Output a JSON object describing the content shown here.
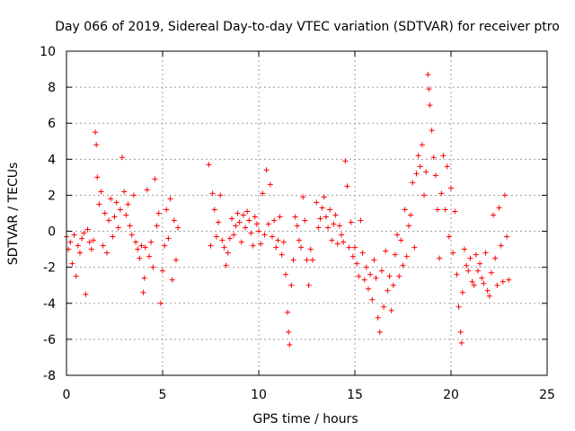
{
  "chart_data": {
    "type": "scatter",
    "title": "Day 066 of 2019, Sidereal Day-to-day VTEC variation (SDTVAR) for receiver ptro",
    "xlabel": "GPS time / hours",
    "ylabel": "SDTVAR / TECUs",
    "xlim": [
      0,
      25
    ],
    "ylim": [
      -8,
      10
    ],
    "xticks": [
      0,
      5,
      10,
      15,
      20,
      25
    ],
    "yticks": [
      -8,
      -6,
      -4,
      -2,
      0,
      2,
      4,
      6,
      8,
      10
    ],
    "grid": true,
    "marker": "+",
    "color": "#ff0000",
    "series": [
      {
        "name": "SDTVAR",
        "points": [
          [
            0.0,
            -0.3
          ],
          [
            0.1,
            -1.0
          ],
          [
            0.2,
            -0.6
          ],
          [
            0.3,
            -1.8
          ],
          [
            0.4,
            -0.2
          ],
          [
            0.5,
            -2.5
          ],
          [
            0.6,
            -0.8
          ],
          [
            0.7,
            -1.2
          ],
          [
            0.8,
            -0.4
          ],
          [
            0.9,
            -0.1
          ],
          [
            1.0,
            -3.5
          ],
          [
            1.1,
            0.1
          ],
          [
            1.2,
            -0.6
          ],
          [
            1.3,
            -1.0
          ],
          [
            1.4,
            -0.5
          ],
          [
            1.5,
            5.5
          ],
          [
            1.55,
            4.8
          ],
          [
            1.6,
            3.0
          ],
          [
            1.7,
            1.5
          ],
          [
            1.8,
            2.2
          ],
          [
            1.9,
            -0.8
          ],
          [
            2.0,
            1.0
          ],
          [
            2.1,
            -1.2
          ],
          [
            2.2,
            0.6
          ],
          [
            2.3,
            1.8
          ],
          [
            2.4,
            -0.3
          ],
          [
            2.5,
            0.8
          ],
          [
            2.6,
            1.6
          ],
          [
            2.7,
            0.2
          ],
          [
            2.8,
            1.2
          ],
          [
            2.9,
            4.1
          ],
          [
            3.0,
            2.2
          ],
          [
            3.1,
            0.9
          ],
          [
            3.2,
            1.5
          ],
          [
            3.3,
            0.3
          ],
          [
            3.4,
            -0.2
          ],
          [
            3.5,
            2.0
          ],
          [
            3.6,
            -0.6
          ],
          [
            3.7,
            -1.0
          ],
          [
            3.8,
            -1.5
          ],
          [
            3.9,
            -0.8
          ],
          [
            4.0,
            -3.4
          ],
          [
            4.05,
            -2.6
          ],
          [
            4.1,
            -0.9
          ],
          [
            4.2,
            2.3
          ],
          [
            4.3,
            -1.4
          ],
          [
            4.4,
            -0.6
          ],
          [
            4.5,
            -2.0
          ],
          [
            4.6,
            2.9
          ],
          [
            4.7,
            0.3
          ],
          [
            4.8,
            1.0
          ],
          [
            4.9,
            -4.0
          ],
          [
            5.0,
            -2.2
          ],
          [
            5.1,
            -0.8
          ],
          [
            5.2,
            1.2
          ],
          [
            5.3,
            -0.4
          ],
          [
            5.4,
            1.8
          ],
          [
            5.5,
            -2.7
          ],
          [
            5.6,
            0.6
          ],
          [
            5.7,
            -1.6
          ],
          [
            5.8,
            0.2
          ],
          [
            7.4,
            3.7
          ],
          [
            7.5,
            -0.8
          ],
          [
            7.6,
            2.1
          ],
          [
            7.7,
            1.2
          ],
          [
            7.8,
            -0.3
          ],
          [
            7.9,
            0.5
          ],
          [
            8.0,
            2.0
          ],
          [
            8.1,
            -0.5
          ],
          [
            8.2,
            -0.9
          ],
          [
            8.3,
            -1.9
          ],
          [
            8.4,
            -1.2
          ],
          [
            8.5,
            -0.4
          ],
          [
            8.6,
            0.7
          ],
          [
            8.7,
            -0.2
          ],
          [
            8.8,
            0.3
          ],
          [
            8.9,
            1.0
          ],
          [
            9.0,
            0.5
          ],
          [
            9.1,
            -0.6
          ],
          [
            9.2,
            0.9
          ],
          [
            9.3,
            0.2
          ],
          [
            9.4,
            1.1
          ],
          [
            9.5,
            0.6
          ],
          [
            9.6,
            -0.1
          ],
          [
            9.7,
            -0.8
          ],
          [
            9.8,
            0.8
          ],
          [
            9.9,
            0.4
          ],
          [
            10.0,
            0.0
          ],
          [
            10.1,
            -0.7
          ],
          [
            10.2,
            2.1
          ],
          [
            10.3,
            -0.2
          ],
          [
            10.4,
            3.4
          ],
          [
            10.5,
            0.4
          ],
          [
            10.6,
            2.6
          ],
          [
            10.7,
            -0.3
          ],
          [
            10.8,
            0.6
          ],
          [
            10.9,
            -0.9
          ],
          [
            11.0,
            -0.5
          ],
          [
            11.1,
            0.8
          ],
          [
            11.2,
            -1.3
          ],
          [
            11.3,
            -0.6
          ],
          [
            11.4,
            -2.4
          ],
          [
            11.5,
            -4.5
          ],
          [
            11.55,
            -5.6
          ],
          [
            11.6,
            -6.3
          ],
          [
            11.7,
            -3.0
          ],
          [
            11.8,
            -1.6
          ],
          [
            11.9,
            0.8
          ],
          [
            12.0,
            0.3
          ],
          [
            12.1,
            -0.5
          ],
          [
            12.2,
            -0.9
          ],
          [
            12.3,
            1.9
          ],
          [
            12.4,
            0.6
          ],
          [
            12.5,
            -1.6
          ],
          [
            12.6,
            -3.0
          ],
          [
            12.7,
            -1.0
          ],
          [
            12.8,
            -1.6
          ],
          [
            13.0,
            1.6
          ],
          [
            13.1,
            0.2
          ],
          [
            13.2,
            0.7
          ],
          [
            13.3,
            1.3
          ],
          [
            13.4,
            1.9
          ],
          [
            13.5,
            0.8
          ],
          [
            13.6,
            0.2
          ],
          [
            13.7,
            1.2
          ],
          [
            13.8,
            -0.5
          ],
          [
            13.9,
            0.4
          ],
          [
            14.0,
            0.9
          ],
          [
            14.1,
            -0.7
          ],
          [
            14.2,
            0.3
          ],
          [
            14.3,
            -0.2
          ],
          [
            14.4,
            -0.6
          ],
          [
            14.5,
            3.9
          ],
          [
            14.6,
            2.5
          ],
          [
            14.7,
            -0.9
          ],
          [
            14.8,
            0.5
          ],
          [
            14.9,
            -1.4
          ],
          [
            15.0,
            -0.9
          ],
          [
            15.1,
            -1.8
          ],
          [
            15.2,
            -2.5
          ],
          [
            15.3,
            0.6
          ],
          [
            15.4,
            -1.2
          ],
          [
            15.5,
            -2.7
          ],
          [
            15.6,
            -2.0
          ],
          [
            15.7,
            -3.2
          ],
          [
            15.8,
            -2.4
          ],
          [
            15.9,
            -3.8
          ],
          [
            16.0,
            -1.6
          ],
          [
            16.1,
            -2.6
          ],
          [
            16.2,
            -4.8
          ],
          [
            16.3,
            -5.6
          ],
          [
            16.4,
            -2.2
          ],
          [
            16.5,
            -4.2
          ],
          [
            16.6,
            -1.1
          ],
          [
            16.7,
            -3.3
          ],
          [
            16.8,
            -2.5
          ],
          [
            16.9,
            -4.4
          ],
          [
            17.0,
            -3.0
          ],
          [
            17.1,
            -1.3
          ],
          [
            17.2,
            -0.2
          ],
          [
            17.3,
            -2.5
          ],
          [
            17.4,
            -0.5
          ],
          [
            17.5,
            -1.9
          ],
          [
            17.6,
            1.2
          ],
          [
            17.7,
            -1.4
          ],
          [
            17.8,
            0.3
          ],
          [
            17.9,
            0.9
          ],
          [
            18.0,
            2.7
          ],
          [
            18.1,
            -0.9
          ],
          [
            18.2,
            3.2
          ],
          [
            18.3,
            4.2
          ],
          [
            18.4,
            3.6
          ],
          [
            18.5,
            4.8
          ],
          [
            18.6,
            2.0
          ],
          [
            18.7,
            3.3
          ],
          [
            18.8,
            8.7
          ],
          [
            18.85,
            7.9
          ],
          [
            18.9,
            7.0
          ],
          [
            19.0,
            5.6
          ],
          [
            19.1,
            4.1
          ],
          [
            19.2,
            3.1
          ],
          [
            19.3,
            1.2
          ],
          [
            19.4,
            -1.5
          ],
          [
            19.5,
            2.1
          ],
          [
            19.6,
            4.2
          ],
          [
            19.7,
            1.2
          ],
          [
            19.8,
            3.6
          ],
          [
            19.9,
            -0.3
          ],
          [
            20.0,
            2.4
          ],
          [
            20.1,
            -1.2
          ],
          [
            20.2,
            1.1
          ],
          [
            20.3,
            -2.4
          ],
          [
            20.4,
            -4.2
          ],
          [
            20.5,
            -5.6
          ],
          [
            20.55,
            -6.2
          ],
          [
            20.6,
            -3.4
          ],
          [
            20.7,
            -1.0
          ],
          [
            20.8,
            -1.9
          ],
          [
            20.9,
            -2.2
          ],
          [
            21.0,
            -1.5
          ],
          [
            21.1,
            -2.8
          ],
          [
            21.2,
            -3.0
          ],
          [
            21.3,
            -1.3
          ],
          [
            21.4,
            -2.2
          ],
          [
            21.5,
            -1.8
          ],
          [
            21.6,
            -2.6
          ],
          [
            21.7,
            -2.9
          ],
          [
            21.8,
            -1.2
          ],
          [
            21.9,
            -3.3
          ],
          [
            22.0,
            -3.6
          ],
          [
            22.1,
            -2.3
          ],
          [
            22.2,
            0.9
          ],
          [
            22.3,
            -1.5
          ],
          [
            22.4,
            -3.0
          ],
          [
            22.5,
            1.3
          ],
          [
            22.6,
            -0.8
          ],
          [
            22.7,
            -2.8
          ],
          [
            22.8,
            2.0
          ],
          [
            22.9,
            -0.3
          ],
          [
            23.0,
            -2.7
          ]
        ]
      }
    ]
  }
}
